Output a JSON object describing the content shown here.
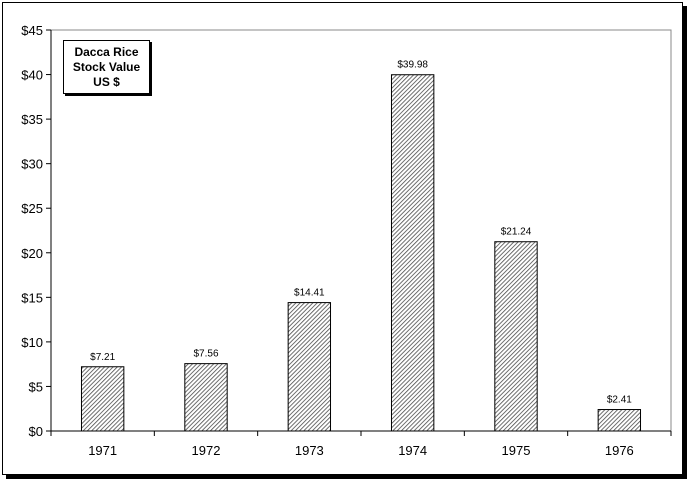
{
  "chart_data": {
    "type": "bar",
    "categories": [
      "1971",
      "1972",
      "1973",
      "1974",
      "1975",
      "1976"
    ],
    "values": [
      7.21,
      7.56,
      14.41,
      39.98,
      21.24,
      2.41
    ],
    "data_labels": [
      "$7.21",
      "$7.56",
      "$14.41",
      "$39.98",
      "$21.24",
      "$2.41"
    ],
    "title": "",
    "xlabel": "",
    "ylabel": "",
    "ylim": [
      0,
      45
    ],
    "yticks": [
      0,
      5,
      10,
      15,
      20,
      25,
      30,
      35,
      40,
      45
    ],
    "ytick_labels": [
      "$0",
      "$5",
      "$10",
      "$15",
      "$20",
      "$25",
      "$30",
      "$35",
      "$40",
      "$45"
    ],
    "legend": {
      "lines": [
        "Dacca Rice",
        "Stock Value",
        "US $"
      ],
      "placement": "top-left"
    },
    "grid": false,
    "bar_fill": "hatched-diagonal",
    "colors": {
      "bar_stroke": "#000000",
      "hatch": "#555555",
      "background": "#ffffff"
    }
  }
}
